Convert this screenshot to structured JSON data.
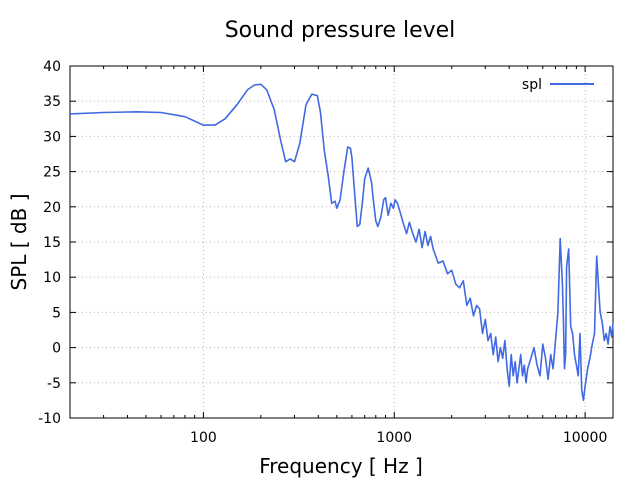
{
  "chart_data": {
    "type": "line",
    "title": "Sound pressure level",
    "xlabel": "Frequency [ Hz ]",
    "ylabel": "SPL [ dB ]",
    "xscale": "log",
    "xlim": [
      20,
      14000
    ],
    "ylim": [
      -10,
      40
    ],
    "xticks": [
      100,
      1000,
      10000
    ],
    "xtick_labels": [
      "100",
      "1000",
      "10000"
    ],
    "yticks": [
      -10,
      -5,
      0,
      5,
      10,
      15,
      20,
      25,
      30,
      35,
      40
    ],
    "ytick_labels": [
      "-10",
      "-5",
      "0",
      "5",
      "10",
      "15",
      "20",
      "25",
      "30",
      "35",
      "40"
    ],
    "grid": true,
    "legend_position": "top-right",
    "series": [
      {
        "name": "spl",
        "color": "#4169e1",
        "x": [
          20,
          30,
          45,
          60,
          80,
          100,
          115,
          130,
          150,
          170,
          185,
          200,
          215,
          235,
          255,
          270,
          285,
          300,
          320,
          345,
          370,
          395,
          410,
          430,
          450,
          470,
          490,
          500,
          520,
          545,
          570,
          590,
          600,
          620,
          640,
          660,
          680,
          700,
          730,
          760,
          780,
          800,
          820,
          850,
          880,
          900,
          930,
          960,
          990,
          1010,
          1040,
          1080,
          1120,
          1160,
          1200,
          1250,
          1300,
          1350,
          1400,
          1450,
          1500,
          1550,
          1600,
          1700,
          1800,
          1900,
          2000,
          2100,
          2200,
          2300,
          2400,
          2500,
          2600,
          2700,
          2800,
          2900,
          3000,
          3100,
          3200,
          3300,
          3400,
          3500,
          3600,
          3700,
          3800,
          3900,
          4000,
          4100,
          4200,
          4300,
          4400,
          4500,
          4600,
          4700,
          4800,
          4900,
          5000,
          5200,
          5400,
          5600,
          5800,
          6000,
          6200,
          6400,
          6600,
          6800,
          7000,
          7200,
          7400,
          7600,
          7700,
          7800,
          7900,
          8000,
          8200,
          8400,
          8600,
          8800,
          9000,
          9200,
          9400,
          9600,
          9800,
          10000,
          10300,
          10600,
          10900,
          11200,
          11500,
          11800,
          12000,
          12300,
          12600,
          12900,
          13200,
          13500,
          13800,
          14000
        ],
        "values": [
          33.2,
          33.4,
          33.5,
          33.4,
          32.8,
          31.6,
          31.6,
          32.5,
          34.5,
          36.6,
          37.3,
          37.4,
          36.6,
          33.8,
          29.2,
          26.4,
          26.8,
          26.4,
          29.0,
          34.5,
          36.0,
          35.8,
          33.5,
          28.0,
          24.5,
          20.5,
          20.8,
          19.8,
          21.0,
          25.0,
          28.5,
          28.3,
          27.0,
          22.0,
          17.2,
          17.5,
          20.5,
          24.0,
          25.5,
          23.5,
          20.5,
          18.0,
          17.2,
          18.5,
          21.0,
          21.3,
          18.8,
          20.5,
          19.8,
          21.0,
          20.5,
          19.0,
          17.5,
          16.2,
          17.8,
          16.2,
          15.0,
          16.8,
          14.2,
          16.5,
          14.5,
          15.8,
          14.0,
          12.0,
          12.3,
          10.5,
          11.0,
          9.0,
          8.5,
          9.5,
          6.0,
          7.0,
          4.5,
          6.0,
          5.5,
          2.0,
          4.0,
          1.0,
          2.0,
          -1.0,
          1.5,
          -2.0,
          0.0,
          -1.5,
          1.0,
          -3.0,
          -5.5,
          -1.0,
          -4.0,
          -2.0,
          -5.0,
          -3.0,
          -1.0,
          -4.0,
          -2.5,
          -5.0,
          -3.0,
          -1.5,
          0.0,
          -2.5,
          -4.0,
          0.5,
          -1.5,
          -4.5,
          -1.0,
          -3.0,
          1.0,
          5.0,
          15.5,
          9.0,
          4.0,
          -3.0,
          -1.0,
          11.5,
          14.0,
          3.0,
          2.0,
          -1.0,
          -2.5,
          -4.0,
          2.0,
          -6.0,
          -7.5,
          -5.5,
          -3.0,
          -1.5,
          0.5,
          2.0,
          13.0,
          8.0,
          5.0,
          3.5,
          1.0,
          2.0,
          0.5,
          3.0,
          1.5,
          3.5
        ]
      }
    ]
  }
}
